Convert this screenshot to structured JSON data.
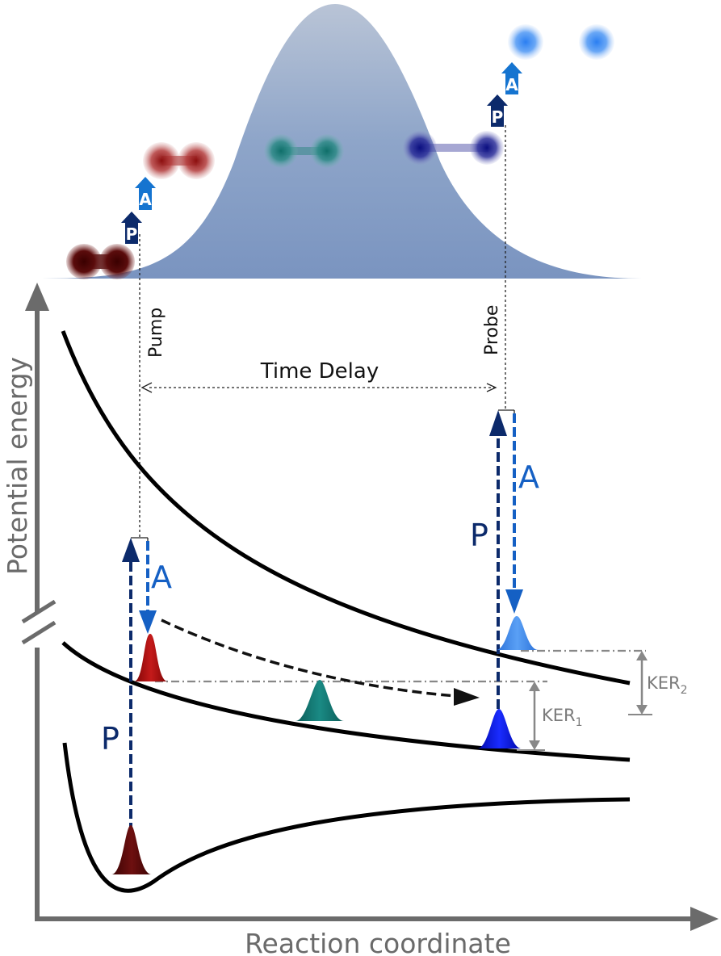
{
  "labels": {
    "pump": "Pump",
    "probe": "Probe",
    "time_delay": "Time Delay",
    "y_axis": "Potential energy",
    "x_axis": "Reaction coordinate",
    "P": "P",
    "A": "A",
    "ker1_main": "KER",
    "ker1_sub": "1",
    "ker2_main": "KER",
    "ker2_sub": "2"
  },
  "colors": {
    "envelope": "#7e98c2",
    "axis": "#6b6b6b",
    "pump_navy": "#0c2a6b",
    "auger_blue": "#0f5fc4",
    "wp_darkred": "#5a0a0a",
    "wp_red": "#b01010",
    "wp_teal": "#137a76",
    "wp_blue": "#0a17e0",
    "wp_lightblue": "#3d8cf0",
    "ker_gray": "#888888"
  }
}
